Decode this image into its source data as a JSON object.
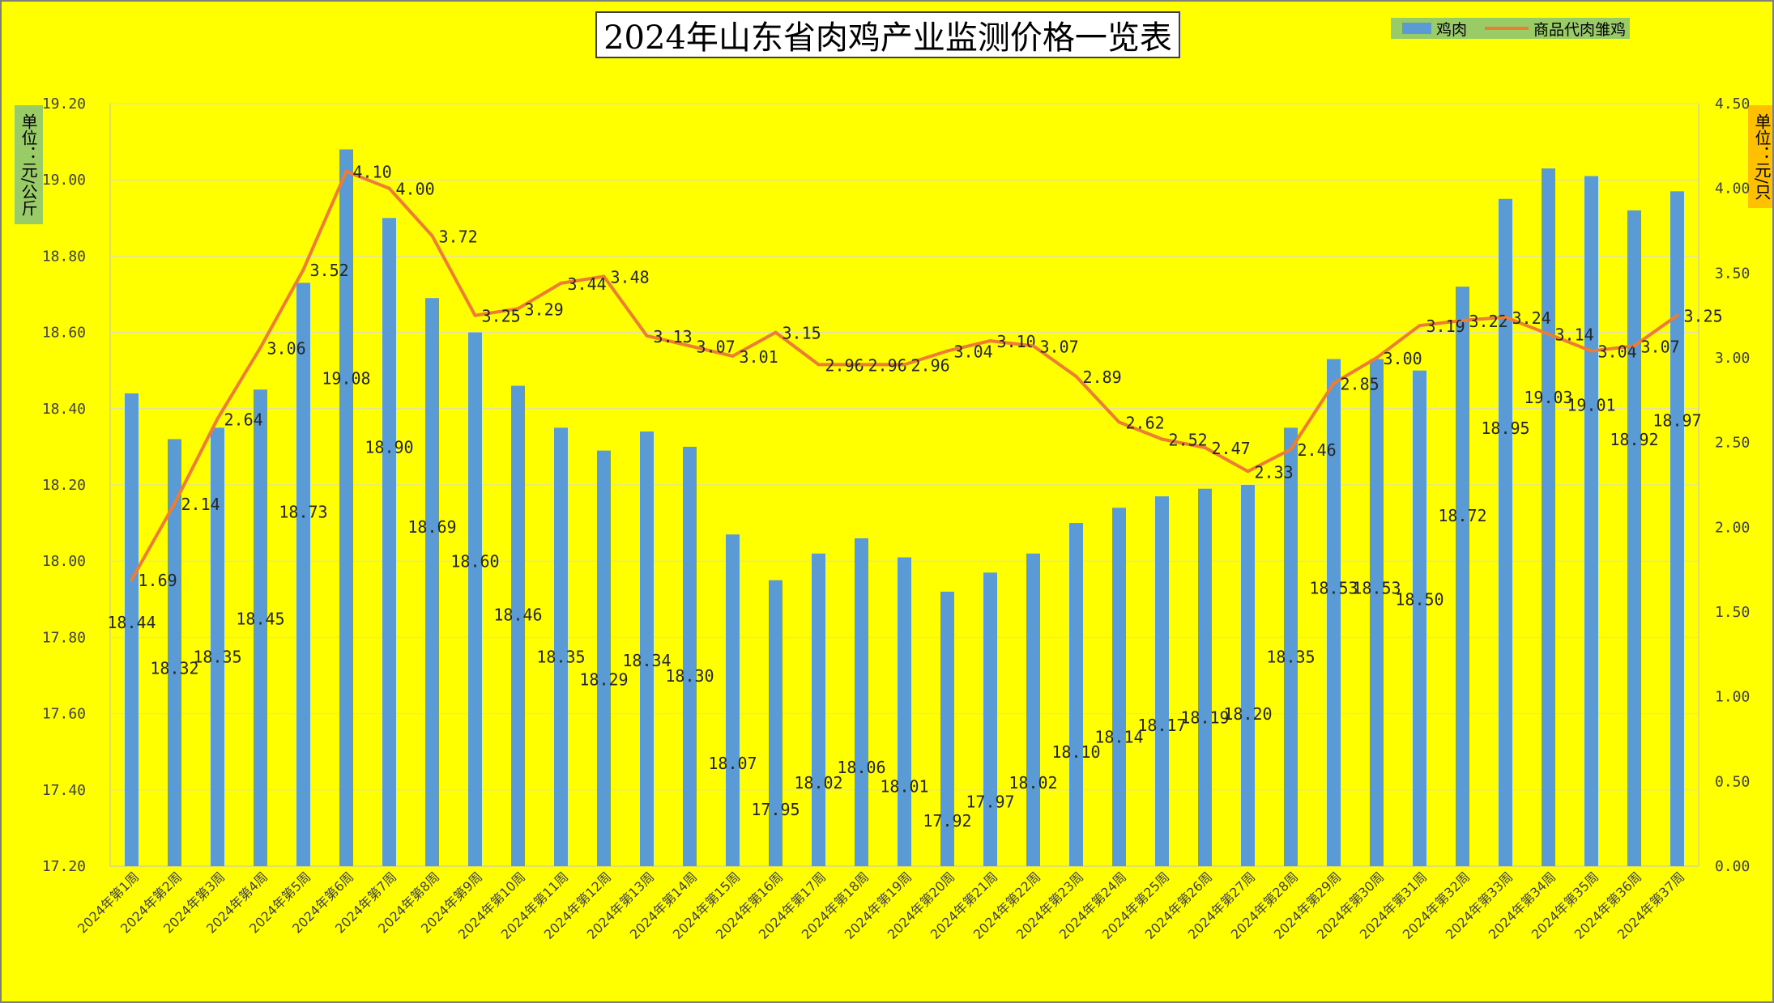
{
  "chart_data": {
    "type": "bar",
    "title": "2024年山东省肉鸡产业监测价格一览表",
    "categories": [
      "2024年第1周",
      "2024年第2周",
      "2024年第3周",
      "2024年第4周",
      "2024年第5周",
      "2024年第6周",
      "2024年第7周",
      "2024年第8周",
      "2024年第9周",
      "2024年第10周",
      "2024年第11周",
      "2024年第12周",
      "2024年第13周",
      "2024年第14周",
      "2024年第15周",
      "2024年第16周",
      "2024年第17周",
      "2024年第18周",
      "2024年第19周",
      "2024年第20周",
      "2024年第21周",
      "2024年第22周",
      "2024年第23周",
      "2024年第24周",
      "2024年第25周",
      "2024年第26周",
      "2024年第27周",
      "2024年第28周",
      "2024年第29周",
      "2024年第30周",
      "2024年第31周",
      "2024年第32周",
      "2024年第33周",
      "2024年第34周",
      "2024年第35周",
      "2024年第36周",
      "2024年第37周"
    ],
    "series": [
      {
        "name": "鸡肉",
        "type": "bar",
        "axis": "left",
        "color": "#5b9bd5",
        "values": [
          18.44,
          18.32,
          18.35,
          18.45,
          18.73,
          19.08,
          18.9,
          18.69,
          18.6,
          18.46,
          18.35,
          18.29,
          18.34,
          18.3,
          18.07,
          17.95,
          18.02,
          18.06,
          18.01,
          17.92,
          17.97,
          18.02,
          18.1,
          18.14,
          18.17,
          18.19,
          18.2,
          18.35,
          18.53,
          18.53,
          18.5,
          18.72,
          18.95,
          19.03,
          19.01,
          18.92,
          18.97
        ]
      },
      {
        "name": "商品代肉雏鸡",
        "type": "line",
        "axis": "right",
        "color": "#ed7d31",
        "values": [
          1.69,
          2.14,
          2.64,
          3.06,
          3.52,
          4.1,
          4.0,
          3.72,
          3.25,
          3.29,
          3.44,
          3.48,
          3.13,
          3.07,
          3.01,
          3.15,
          2.96,
          2.96,
          2.96,
          3.04,
          3.1,
          3.07,
          2.89,
          2.62,
          2.52,
          2.47,
          2.33,
          2.46,
          2.85,
          3.0,
          3.19,
          3.22,
          3.24,
          3.14,
          3.04,
          3.07,
          3.25
        ]
      }
    ],
    "y_left": {
      "min": 17.2,
      "max": 19.2,
      "step": 0.2,
      "label": "单位：元/公斤"
    },
    "y_right": {
      "min": 0,
      "max": 4.5,
      "step": 0.5,
      "label": "单位：元/只"
    },
    "grid": true,
    "legend_position": "top-right"
  }
}
